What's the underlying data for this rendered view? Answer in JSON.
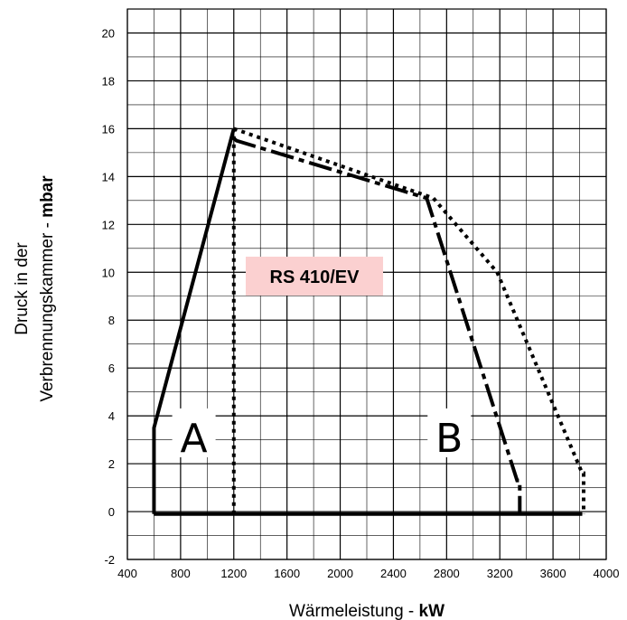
{
  "chart_data": {
    "type": "line",
    "xlabel": {
      "text": "Wärmeleistung - ",
      "bold": "kW"
    },
    "ylabel": {
      "line1": "Druck in der",
      "line2_text": "Verbrennungskammer - ",
      "line2_bold": "mbar"
    },
    "xlim": [
      400,
      4000
    ],
    "ylim": [
      -2,
      21
    ],
    "x_ticks": [
      400,
      800,
      1200,
      1600,
      2000,
      2400,
      2800,
      3200,
      3600,
      4000
    ],
    "y_ticks": [
      -2,
      0,
      2,
      4,
      6,
      8,
      10,
      12,
      14,
      16,
      18,
      20
    ],
    "grid": true,
    "model_label": "RS 410/EV",
    "model_label_bg": "#fbd0d0",
    "region_labels": [
      {
        "text": "A",
        "x": 900,
        "y": 2.8
      },
      {
        "text": "B",
        "x": 2820,
        "y": 2.8
      }
    ],
    "series": [
      {
        "style": "solid",
        "x": [
          600,
          600,
          1200,
          1200
        ],
        "y": [
          -0.1,
          3.5,
          16,
          16
        ]
      },
      {
        "style": "dotted",
        "x": [
          1200,
          1200
        ],
        "y": [
          -0.1,
          16
        ]
      },
      {
        "style": "dashed",
        "x": [
          1200,
          1220,
          2650,
          3330,
          3350,
          3350
        ],
        "y": [
          15.6,
          15.5,
          13.1,
          1.3,
          1.3,
          -0.1
        ]
      },
      {
        "style": "dotted",
        "x": [
          1200,
          2700,
          3180,
          3820,
          3830,
          3830
        ],
        "y": [
          16,
          13.1,
          10,
          1.6,
          1.6,
          -0.1
        ]
      },
      {
        "style": "solid",
        "x": [
          600,
          3820
        ],
        "y": [
          -0.1,
          -0.1
        ]
      }
    ]
  }
}
